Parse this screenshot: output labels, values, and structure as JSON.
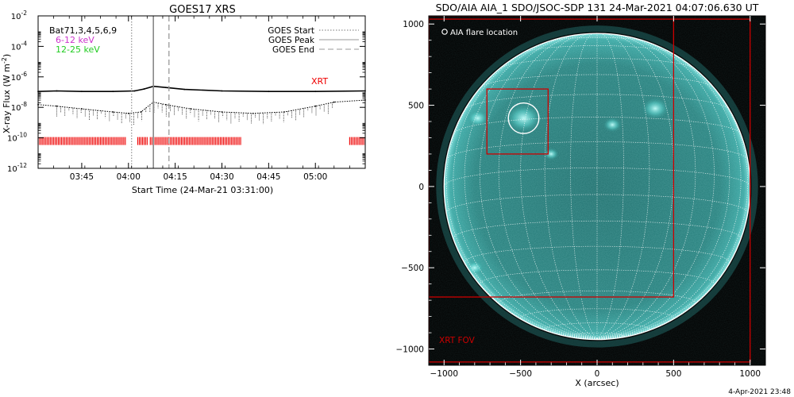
{
  "colors": {
    "background": "#ffffff",
    "axis": "#000000",
    "goes_line": "#000000",
    "legend_low": "#cc33cc",
    "legend_high": "#22cc22",
    "xrt_marks": "#ee0000",
    "disk": "#2a8f8c",
    "disk_glow": "#56c9c6",
    "limb": "#ffffff",
    "box": "#cc0000",
    "circle": "#ffffff"
  },
  "icons": {
    "flare_marker": "circle-outline-icon"
  },
  "footer": {
    "timestamp": "4-Apr-2021 23:48"
  },
  "chart_data": [
    {
      "type": "line",
      "title": "GOES17 XRS",
      "xlabel": "Start Time (24-Mar-21 03:31:00)",
      "ylabel": "X-ray Flux (W m",
      "ylabel_sup": "-2",
      "ylabel_tail": ")",
      "y_scale": "log",
      "ylim": [
        1e-12,
        0.01
      ],
      "xlim": [
        "03:31",
        "05:16"
      ],
      "y_ticks": [
        {
          "value": 1e-12,
          "base": "10",
          "exp": "-12"
        },
        {
          "value": 1e-10,
          "base": "10",
          "exp": "-10"
        },
        {
          "value": 1e-08,
          "base": "10",
          "exp": "-8"
        },
        {
          "value": 1e-06,
          "base": "10",
          "exp": "-6"
        },
        {
          "value": 0.0001,
          "base": "10",
          "exp": "-4"
        },
        {
          "value": 0.01,
          "base": "10",
          "exp": "-2"
        }
      ],
      "x_ticks": [
        "03:45",
        "04:00",
        "04:15",
        "04:30",
        "04:45",
        "05:00"
      ],
      "legend_left": [
        "Bat71,3,4,5,6,9",
        "6-12 keV",
        "12-25 keV"
      ],
      "legend_right": [
        {
          "label": "GOES Start",
          "style": "dotted",
          "time": "04:01"
        },
        {
          "label": "GOES Peak",
          "style": "solid",
          "time": "04:08"
        },
        {
          "label": "GOES End",
          "style": "dashed",
          "time": "04:13"
        }
      ],
      "annotation": "XRT",
      "series": [
        {
          "style": "solid",
          "x": [
            "03:31",
            "03:37",
            "03:45",
            "03:55",
            "04:02",
            "04:05",
            "04:08",
            "04:12",
            "04:18",
            "04:30",
            "04:45",
            "05:00",
            "05:16"
          ],
          "y": [
            1.1e-07,
            1.2e-07,
            1.1e-07,
            1.1e-07,
            1.2e-07,
            1.6e-07,
            2.4e-07,
            2e-07,
            1.5e-07,
            1.2e-07,
            1.1e-07,
            1.1e-07,
            1.2e-07
          ]
        },
        {
          "style": "dotted",
          "x": [
            "03:31",
            "03:37",
            "03:45",
            "03:55",
            "04:00",
            "04:04",
            "04:08",
            "04:12",
            "04:20",
            "04:30",
            "04:40",
            "04:50",
            "05:00",
            "05:06",
            "05:16"
          ],
          "y": [
            1.5e-08,
            1.2e-08,
            8e-09,
            5e-09,
            4e-09,
            5e-09,
            2.2e-08,
            1.5e-08,
            8e-09,
            5e-09,
            4e-09,
            5e-09,
            1.2e-08,
            2.2e-08,
            3e-08
          ]
        }
      ],
      "xrt_coverage": [
        [
          "03:31",
          "03:59"
        ],
        [
          "04:03",
          "04:06"
        ],
        [
          "04:07",
          "04:36"
        ],
        [
          "05:11",
          "05:16"
        ]
      ]
    },
    {
      "type": "heatmap",
      "title": "SDO/AIA AIA_1 SDO/JSOC-SDP 131 24-Mar-2021 04:07:06.630 UT",
      "xlabel": "X (arcsec)",
      "xlim": [
        -1100,
        1100
      ],
      "ylim": [
        -1100,
        1050
      ],
      "x_ticks": [
        -1000,
        -500,
        0,
        500,
        1000
      ],
      "y_ticks": [
        -1000,
        -500,
        0,
        500,
        1000
      ],
      "x_tick_labels": [
        "−1000",
        "−500",
        "0",
        "500",
        "1000"
      ],
      "y_tick_labels": [
        "−1000",
        "−500",
        "0",
        "500",
        "1000"
      ],
      "solar_radius": 1000,
      "legend": "AIA flare location",
      "flare_location": {
        "x": -480,
        "y": 420,
        "radius": 100
      },
      "flare_box": {
        "x0": -720,
        "x1": -320,
        "y0": 200,
        "y1": 600
      },
      "xrt_fov_boxes": [
        {
          "x0": -1100,
          "x1": 1000,
          "y0": -1080,
          "y1": 1030
        },
        {
          "x0": -1100,
          "x1": 500,
          "y0": -680,
          "y1": 1050
        }
      ],
      "fov_label": "XRT FOV"
    }
  ]
}
